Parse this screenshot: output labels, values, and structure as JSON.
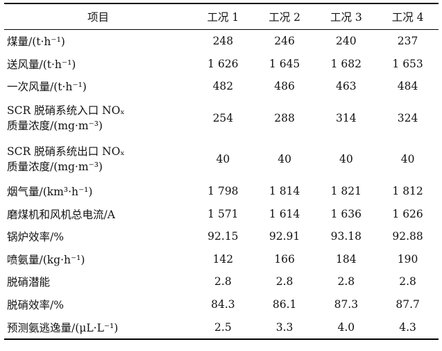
{
  "header": {
    "item": "项目",
    "cases": [
      "工况 1",
      "工况 2",
      "工况 3",
      "工况 4"
    ]
  },
  "rows": [
    {
      "label": "煤量/(t·h⁻¹)",
      "values": [
        "248",
        "246",
        "240",
        "237"
      ]
    },
    {
      "label": "送风量/(t·h⁻¹)",
      "values": [
        "1 626",
        "1 645",
        "1 682",
        "1 653"
      ]
    },
    {
      "label": "一次风量/(t·h⁻¹)",
      "values": [
        "482",
        "486",
        "463",
        "484"
      ]
    },
    {
      "label_lines": [
        "SCR 脱硝系统入口 NOₓ",
        "质量浓度/(mg·m⁻³)"
      ],
      "values": [
        "254",
        "288",
        "314",
        "324"
      ]
    },
    {
      "label_lines": [
        "SCR 脱硝系统出口 NOₓ",
        "质量浓度/(mg·m⁻³)"
      ],
      "values": [
        "40",
        "40",
        "40",
        "40"
      ]
    },
    {
      "label": "烟气量/(km³·h⁻¹)",
      "values": [
        "1 798",
        "1 814",
        "1 821",
        "1 812"
      ]
    },
    {
      "label": "磨煤机和风机总电流/A",
      "values": [
        "1 571",
        "1 614",
        "1 636",
        "1 626"
      ]
    },
    {
      "label": "锅炉效率/%",
      "values": [
        "92.15",
        "92.91",
        "93.18",
        "92.88"
      ]
    },
    {
      "label": "喷氨量/(kg·h⁻¹)",
      "values": [
        "142",
        "166",
        "184",
        "190"
      ]
    },
    {
      "label": "脱硝潜能",
      "values": [
        "2.8",
        "2.8",
        "2.8",
        "2.8"
      ]
    },
    {
      "label": "脱硝效率/%",
      "values": [
        "84.3",
        "86.1",
        "87.3",
        "87.7"
      ]
    },
    {
      "label": "预测氨逃逸量/(μL·L⁻¹)",
      "values": [
        "2.5",
        "3.3",
        "4.0",
        "4.3"
      ]
    }
  ]
}
